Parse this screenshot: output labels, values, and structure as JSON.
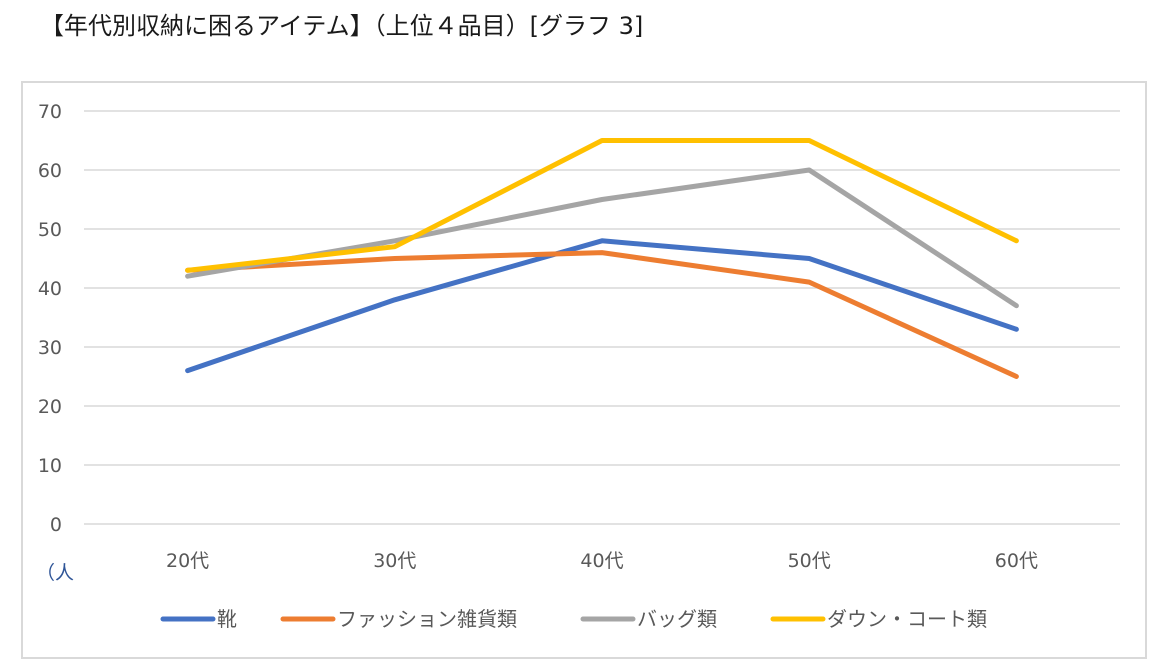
{
  "heading": "【年代別収納に困るアイテム】（上位４品目）[グラフ 3]",
  "chart_data": {
    "type": "line",
    "title": "",
    "xlabel": "",
    "ylabel": "",
    "unit_label": "（人",
    "categories": [
      "20代",
      "30代",
      "40代",
      "50代",
      "60代"
    ],
    "ylim": [
      0,
      70
    ],
    "yticks": [
      0,
      10,
      20,
      30,
      40,
      50,
      60,
      70
    ],
    "grid": true,
    "legend_position": "bottom",
    "series": [
      {
        "name": "靴",
        "color": "#4472c4",
        "values": [
          26,
          38,
          48,
          45,
          33
        ]
      },
      {
        "name": "ファッション雑貨類",
        "color": "#ed7d31",
        "values": [
          43,
          45,
          46,
          41,
          25
        ]
      },
      {
        "name": "バッグ類",
        "color": "#a5a5a5",
        "values": [
          42,
          48,
          55,
          60,
          37
        ]
      },
      {
        "name": "ダウン・コート類",
        "color": "#ffc000",
        "values": [
          43,
          47,
          65,
          65,
          48
        ]
      }
    ]
  }
}
